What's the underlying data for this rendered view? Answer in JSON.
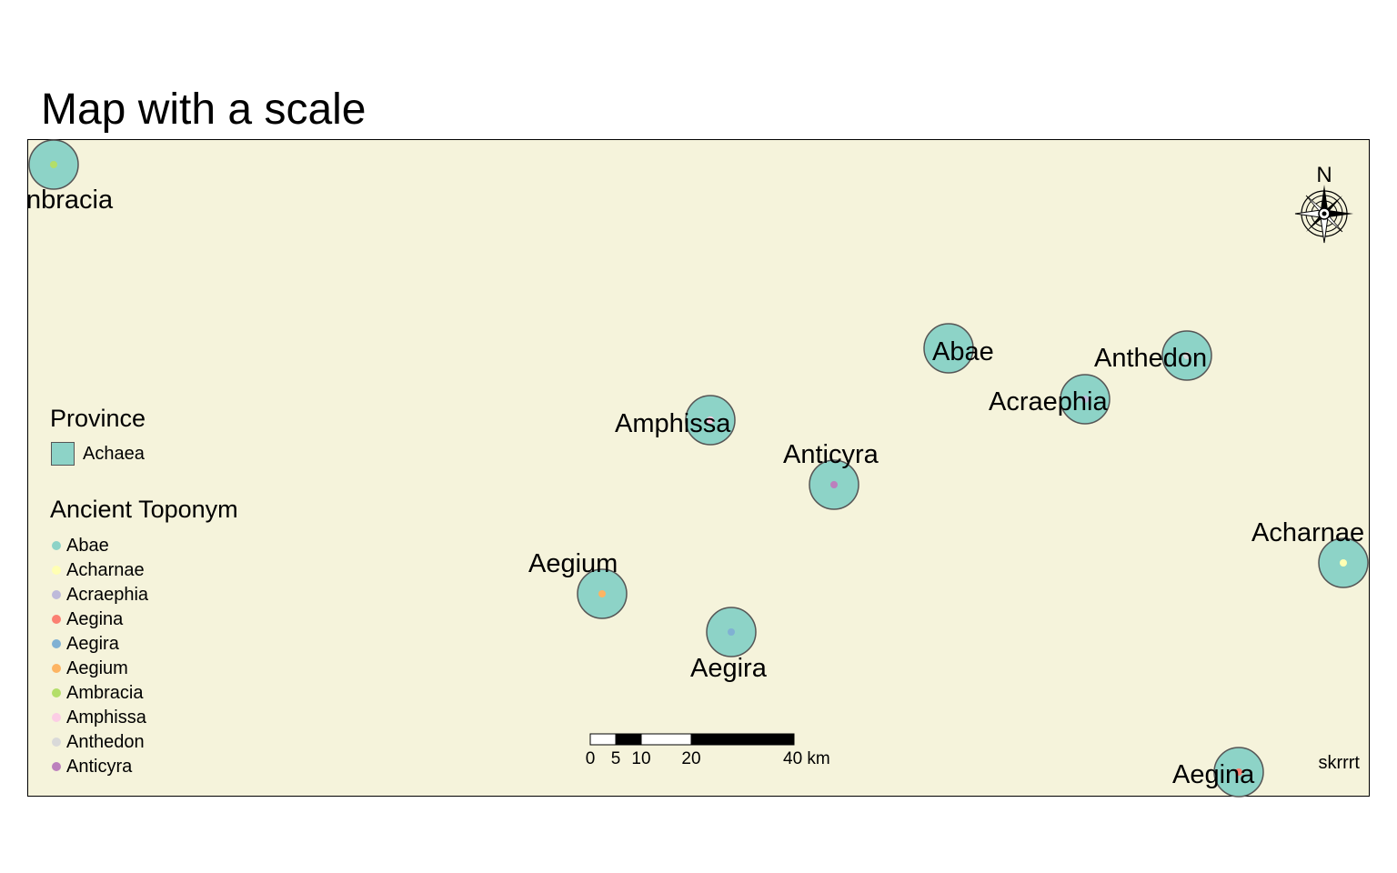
{
  "title": "Map with a scale",
  "colors": {
    "background": "#f5f3db",
    "province_fill": "#8dd3c7",
    "province_border": "#555555"
  },
  "cities": [
    {
      "name": "Ambracia",
      "label": "nbracia",
      "color": "#b3de69"
    },
    {
      "name": "Abae",
      "label": "Abae",
      "color": "#8dd3c7"
    },
    {
      "name": "Anthedon",
      "label": "Anthedon",
      "color": "#d9d9d9"
    },
    {
      "name": "Acraephia",
      "label": "Acraephia",
      "color": "#bebada"
    },
    {
      "name": "Amphissa",
      "label": "Amphissa",
      "color": "#fccde5"
    },
    {
      "name": "Anticyra",
      "label": "Anticyra",
      "color": "#bc80bd"
    },
    {
      "name": "Acharnae",
      "label": "Acharnae",
      "color": "#ffffb3"
    },
    {
      "name": "Aegium",
      "label": "Aegium",
      "color": "#fdb462"
    },
    {
      "name": "Aegira",
      "label": "Aegira",
      "color": "#80b1d3"
    },
    {
      "name": "Aegina",
      "label": "Aegina",
      "color": "#fb8072"
    }
  ],
  "legend": {
    "province_title": "Province",
    "province_item": "Achaea",
    "toponym_title": "Ancient Toponym",
    "toponym_items": [
      {
        "label": "Abae",
        "color": "#8dd3c7"
      },
      {
        "label": "Acharnae",
        "color": "#ffffb3"
      },
      {
        "label": "Acraephia",
        "color": "#bebada"
      },
      {
        "label": "Aegina",
        "color": "#fb8072"
      },
      {
        "label": "Aegira",
        "color": "#80b1d3"
      },
      {
        "label": "Aegium",
        "color": "#fdb462"
      },
      {
        "label": "Ambracia",
        "color": "#b3de69"
      },
      {
        "label": "Amphissa",
        "color": "#fccde5"
      },
      {
        "label": "Anthedon",
        "color": "#d9d9d9"
      },
      {
        "label": "Anticyra",
        "color": "#bc80bd"
      }
    ]
  },
  "scale_bar": {
    "ticks": [
      "0",
      "5",
      "10",
      "20",
      "40 km"
    ]
  },
  "north_arrow": {
    "label": "N",
    "icon": "compass-rose-icon"
  },
  "credit": "skrrrt"
}
